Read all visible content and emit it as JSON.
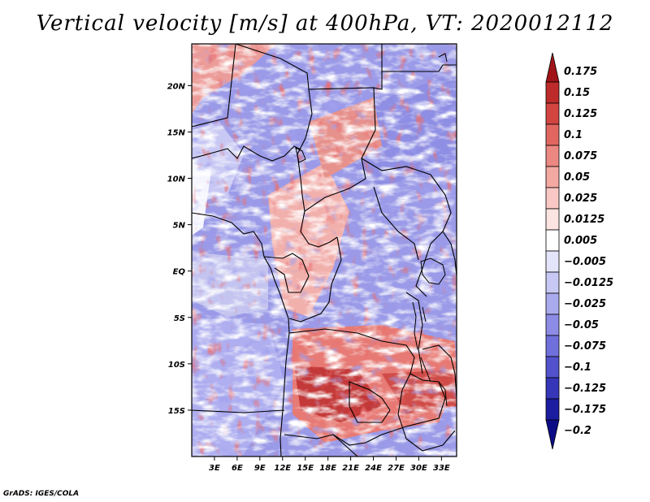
{
  "title": "Vertical velocity [m/s] at 400hPa, VT: 2020012112",
  "credit": "GrADS: IGES/COLA",
  "map": {
    "lon_ticks": [
      "3E",
      "6E",
      "9E",
      "12E",
      "15E",
      "18E",
      "21E",
      "24E",
      "27E",
      "30E",
      "33E"
    ],
    "lat_ticks": [
      "20N",
      "15N",
      "10N",
      "5N",
      "EQ",
      "5S",
      "10S",
      "15S"
    ],
    "lon_range_deg": [
      0,
      35
    ],
    "lat_range_deg": [
      -20,
      24.5
    ]
  },
  "colorbar": {
    "labels": [
      "0.175",
      "0.15",
      "0.125",
      "0.1",
      "0.075",
      "0.05",
      "0.025",
      "0.0125",
      "0.005",
      "−0.005",
      "−0.0125",
      "−0.025",
      "−0.05",
      "−0.075",
      "−0.1",
      "−0.125",
      "−0.175",
      "−0.2"
    ],
    "colors": [
      "#a01418",
      "#bd2c2a",
      "#d24440",
      "#e26660",
      "#ec8882",
      "#f4a8a2",
      "#f9c8c4",
      "#fce4e2",
      "#ffffff",
      "#e4e4fa",
      "#c8c8f4",
      "#aaaaee",
      "#8c8ce6",
      "#7070dc",
      "#5252cc",
      "#3636b8",
      "#1c1ca0",
      "#0c0c86"
    ]
  }
}
